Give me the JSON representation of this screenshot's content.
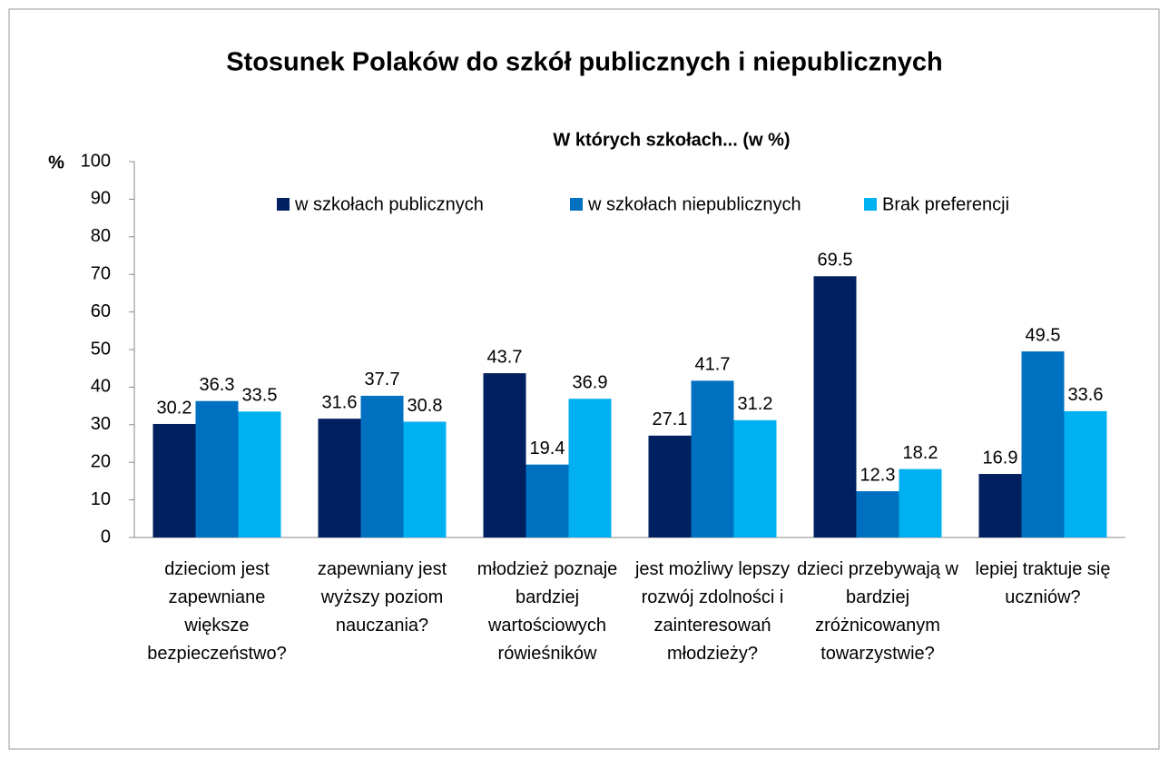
{
  "chart_data": {
    "type": "bar",
    "title": "Stosunek Polaków do szkół publicznych i niepublicznych",
    "subtitle": "W których szkołach... (w %)",
    "ylabel": "%",
    "categories": [
      "dzieciom jest zapewniane większe bezpieczeństwo?",
      "zapewniany jest wyższy poziom nauczania?",
      "młodzież poznaje bardziej wartościowych rówieśników",
      "jest możliwy lepszy rozwój zdolności i zainteresowań młodzieży?",
      "dzieci przebywają w bardziej zróżnicowanym towarzystwie?",
      "lepiej traktuje się uczniów?"
    ],
    "series": [
      {
        "name": "w szkołach publicznych",
        "color": "#002060",
        "values": [
          30.2,
          31.6,
          43.7,
          27.1,
          69.5,
          16.9
        ]
      },
      {
        "name": "w szkołach niepublicznych",
        "color": "#0070c0",
        "values": [
          36.3,
          37.7,
          19.4,
          41.7,
          12.3,
          49.5
        ]
      },
      {
        "name": "Brak preferencji",
        "color": "#00b0f0",
        "values": [
          33.5,
          30.8,
          36.9,
          31.2,
          18.2,
          33.6
        ]
      }
    ],
    "ylim": [
      0,
      100
    ],
    "yticks": [
      0,
      10,
      20,
      30,
      40,
      50,
      60,
      70,
      80,
      90,
      100
    ],
    "grid": false,
    "legend": "top"
  }
}
